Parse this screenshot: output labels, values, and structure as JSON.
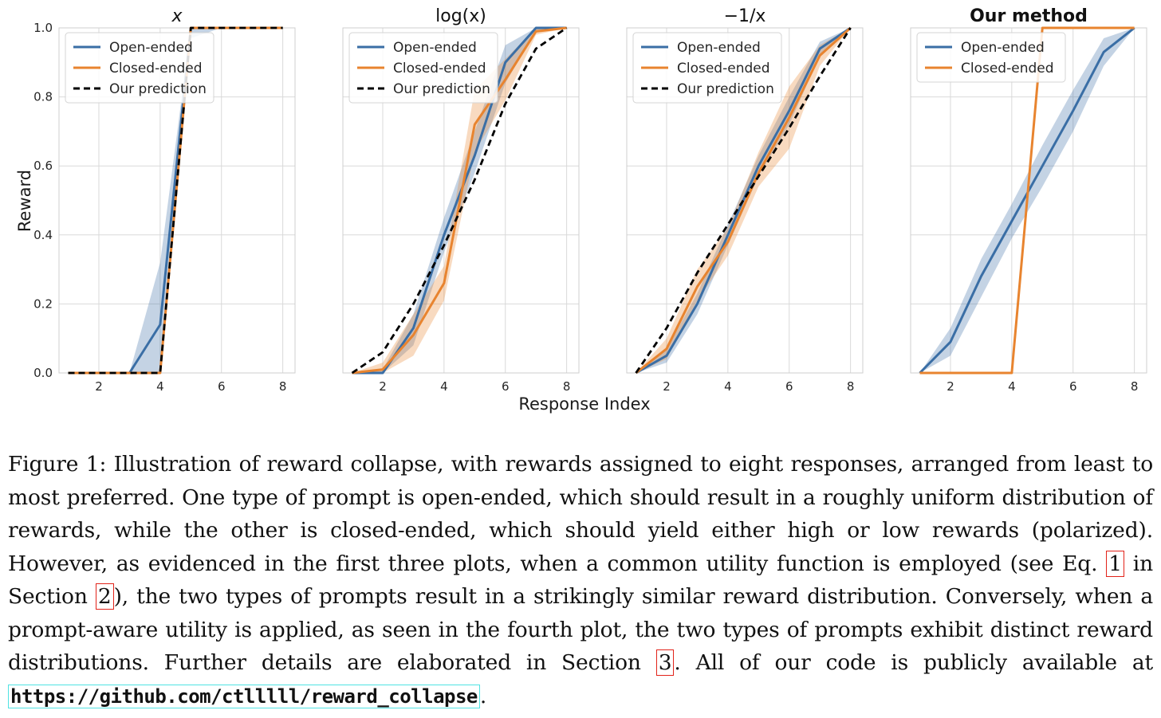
{
  "chart_data": [
    {
      "type": "line",
      "title": "x",
      "title_bold": false,
      "ylabel": "Reward",
      "xlim": [
        0.7,
        8.4
      ],
      "ylim": [
        0.0,
        1.0
      ],
      "xticks": [
        "2",
        "4",
        "6",
        "8"
      ],
      "yticks": [
        "0.0",
        "0.2",
        "0.4",
        "0.6",
        "0.8",
        "1.0"
      ],
      "grid": true,
      "legend_position": "upper-left",
      "legend": [
        "Open-ended",
        "Closed-ended",
        "Our prediction"
      ],
      "x": [
        1,
        2,
        3,
        4,
        5,
        6,
        7,
        8
      ],
      "series": [
        {
          "name": "Open-ended",
          "color": "#3a6ea5",
          "values": [
            0.0,
            0.0,
            0.0,
            0.14,
            1.0,
            1.0,
            1.0,
            1.0
          ],
          "band_lower": [
            0.0,
            0.0,
            0.0,
            0.0,
            0.97,
            1.0,
            1.0,
            1.0
          ],
          "band_upper": [
            0.0,
            0.0,
            0.0,
            0.32,
            1.0,
            1.0,
            1.0,
            1.0
          ],
          "style": "solid"
        },
        {
          "name": "Closed-ended",
          "color": "#e8842f",
          "values": [
            0.0,
            0.0,
            0.0,
            0.0,
            1.0,
            1.0,
            1.0,
            1.0
          ],
          "style": "solid"
        },
        {
          "name": "Our prediction",
          "color": "#000000",
          "values": [
            0.0,
            0.0,
            0.0,
            0.0,
            1.0,
            1.0,
            1.0,
            1.0
          ],
          "style": "dashed"
        }
      ]
    },
    {
      "type": "line",
      "title": "log(x)",
      "title_bold": false,
      "xlim": [
        0.7,
        8.4
      ],
      "ylim": [
        0.0,
        1.0
      ],
      "xticks": [
        "2",
        "4",
        "6",
        "8"
      ],
      "grid": true,
      "legend_position": "upper-left",
      "legend": [
        "Open-ended",
        "Closed-ended",
        "Our prediction"
      ],
      "x": [
        1,
        2,
        3,
        4,
        5,
        6,
        7,
        8
      ],
      "series": [
        {
          "name": "Open-ended",
          "color": "#3a6ea5",
          "values": [
            0.0,
            0.0,
            0.13,
            0.4,
            0.63,
            0.9,
            1.0,
            1.0
          ],
          "band_lower": [
            0.0,
            0.0,
            0.08,
            0.35,
            0.58,
            0.84,
            0.99,
            1.0
          ],
          "band_upper": [
            0.0,
            0.01,
            0.17,
            0.45,
            0.7,
            0.95,
            1.0,
            1.0
          ],
          "style": "solid"
        },
        {
          "name": "Closed-ended",
          "color": "#e8842f",
          "values": [
            0.0,
            0.01,
            0.11,
            0.26,
            0.72,
            0.85,
            0.99,
            1.0
          ],
          "band_lower": [
            0.0,
            0.0,
            0.05,
            0.21,
            0.64,
            0.79,
            0.98,
            1.0
          ],
          "band_upper": [
            0.0,
            0.03,
            0.17,
            0.31,
            0.82,
            0.91,
            1.0,
            1.0
          ],
          "style": "solid"
        },
        {
          "name": "Our prediction",
          "color": "#000000",
          "values": [
            0.0,
            0.06,
            0.2,
            0.37,
            0.56,
            0.78,
            0.94,
            1.0
          ],
          "style": "dashed"
        }
      ]
    },
    {
      "type": "line",
      "title": "−1/x",
      "title_bold": false,
      "xlim": [
        0.7,
        8.4
      ],
      "ylim": [
        0.0,
        1.0
      ],
      "xticks": [
        "2",
        "4",
        "6",
        "8"
      ],
      "grid": true,
      "legend_position": "upper-left",
      "legend": [
        "Open-ended",
        "Closed-ended",
        "Our prediction"
      ],
      "x": [
        1,
        2,
        3,
        4,
        5,
        6,
        7,
        8
      ],
      "series": [
        {
          "name": "Open-ended",
          "color": "#3a6ea5",
          "values": [
            0.0,
            0.05,
            0.2,
            0.4,
            0.6,
            0.76,
            0.94,
            1.0
          ],
          "band_lower": [
            0.0,
            0.03,
            0.17,
            0.37,
            0.57,
            0.72,
            0.92,
            1.0
          ],
          "band_upper": [
            0.0,
            0.07,
            0.23,
            0.43,
            0.63,
            0.8,
            0.96,
            1.0
          ],
          "style": "solid"
        },
        {
          "name": "Closed-ended",
          "color": "#e8842f",
          "values": [
            0.0,
            0.07,
            0.25,
            0.38,
            0.58,
            0.74,
            0.92,
            1.0
          ],
          "band_lower": [
            0.0,
            0.04,
            0.21,
            0.34,
            0.54,
            0.65,
            0.89,
            1.0
          ],
          "band_upper": [
            0.0,
            0.1,
            0.3,
            0.42,
            0.64,
            0.83,
            0.95,
            1.0
          ],
          "style": "solid"
        },
        {
          "name": "Our prediction",
          "color": "#000000",
          "values": [
            0.0,
            0.13,
            0.29,
            0.43,
            0.57,
            0.71,
            0.86,
            1.0
          ],
          "style": "dashed"
        }
      ]
    },
    {
      "type": "line",
      "title": "Our method",
      "title_bold": true,
      "xlim": [
        0.7,
        8.4
      ],
      "ylim": [
        0.0,
        1.0
      ],
      "xticks": [
        "2",
        "4",
        "6",
        "8"
      ],
      "grid": true,
      "legend_position": "upper-left",
      "legend": [
        "Open-ended",
        "Closed-ended"
      ],
      "x": [
        1,
        2,
        3,
        4,
        5,
        6,
        7,
        8
      ],
      "series": [
        {
          "name": "Open-ended",
          "color": "#3a6ea5",
          "values": [
            0.0,
            0.09,
            0.28,
            0.44,
            0.6,
            0.76,
            0.93,
            1.0
          ],
          "band_lower": [
            0.0,
            0.05,
            0.22,
            0.39,
            0.54,
            0.7,
            0.89,
            1.0
          ],
          "band_upper": [
            0.0,
            0.13,
            0.33,
            0.49,
            0.66,
            0.82,
            0.97,
            1.0
          ],
          "style": "solid"
        },
        {
          "name": "Closed-ended",
          "color": "#e8842f",
          "values": [
            0.0,
            0.0,
            0.0,
            0.0,
            1.0,
            1.0,
            1.0,
            1.0
          ],
          "style": "solid"
        }
      ]
    }
  ],
  "shared_xlabel": "Response Index",
  "caption": {
    "text_1": "Figure 1: Illustration of reward collapse, with rewards assigned to eight responses, arranged from least to most preferred. One type of prompt is open-ended, which should result in a roughly uniform distribution of rewards, while the other is closed-ended, which should yield either high or low rewards (polarized). However, as evidenced in the first three plots, when a common utility function is employed (see Eq.",
    "ref_eq": "1",
    "text_2": "in Section",
    "ref_sec1": "2",
    "text_3": "), the two types of prompts result in a strikingly similar reward distribution. Conversely, when a prompt-aware utility is applied, as seen in the fourth plot, the two types of prompts exhibit distinct reward distributions. Further details are elaborated in Section",
    "ref_sec2": "3",
    "text_4": ". All of our code is publicly available at",
    "url": "https://github.com/ctlllll/reward_collapse",
    "text_5": "."
  }
}
